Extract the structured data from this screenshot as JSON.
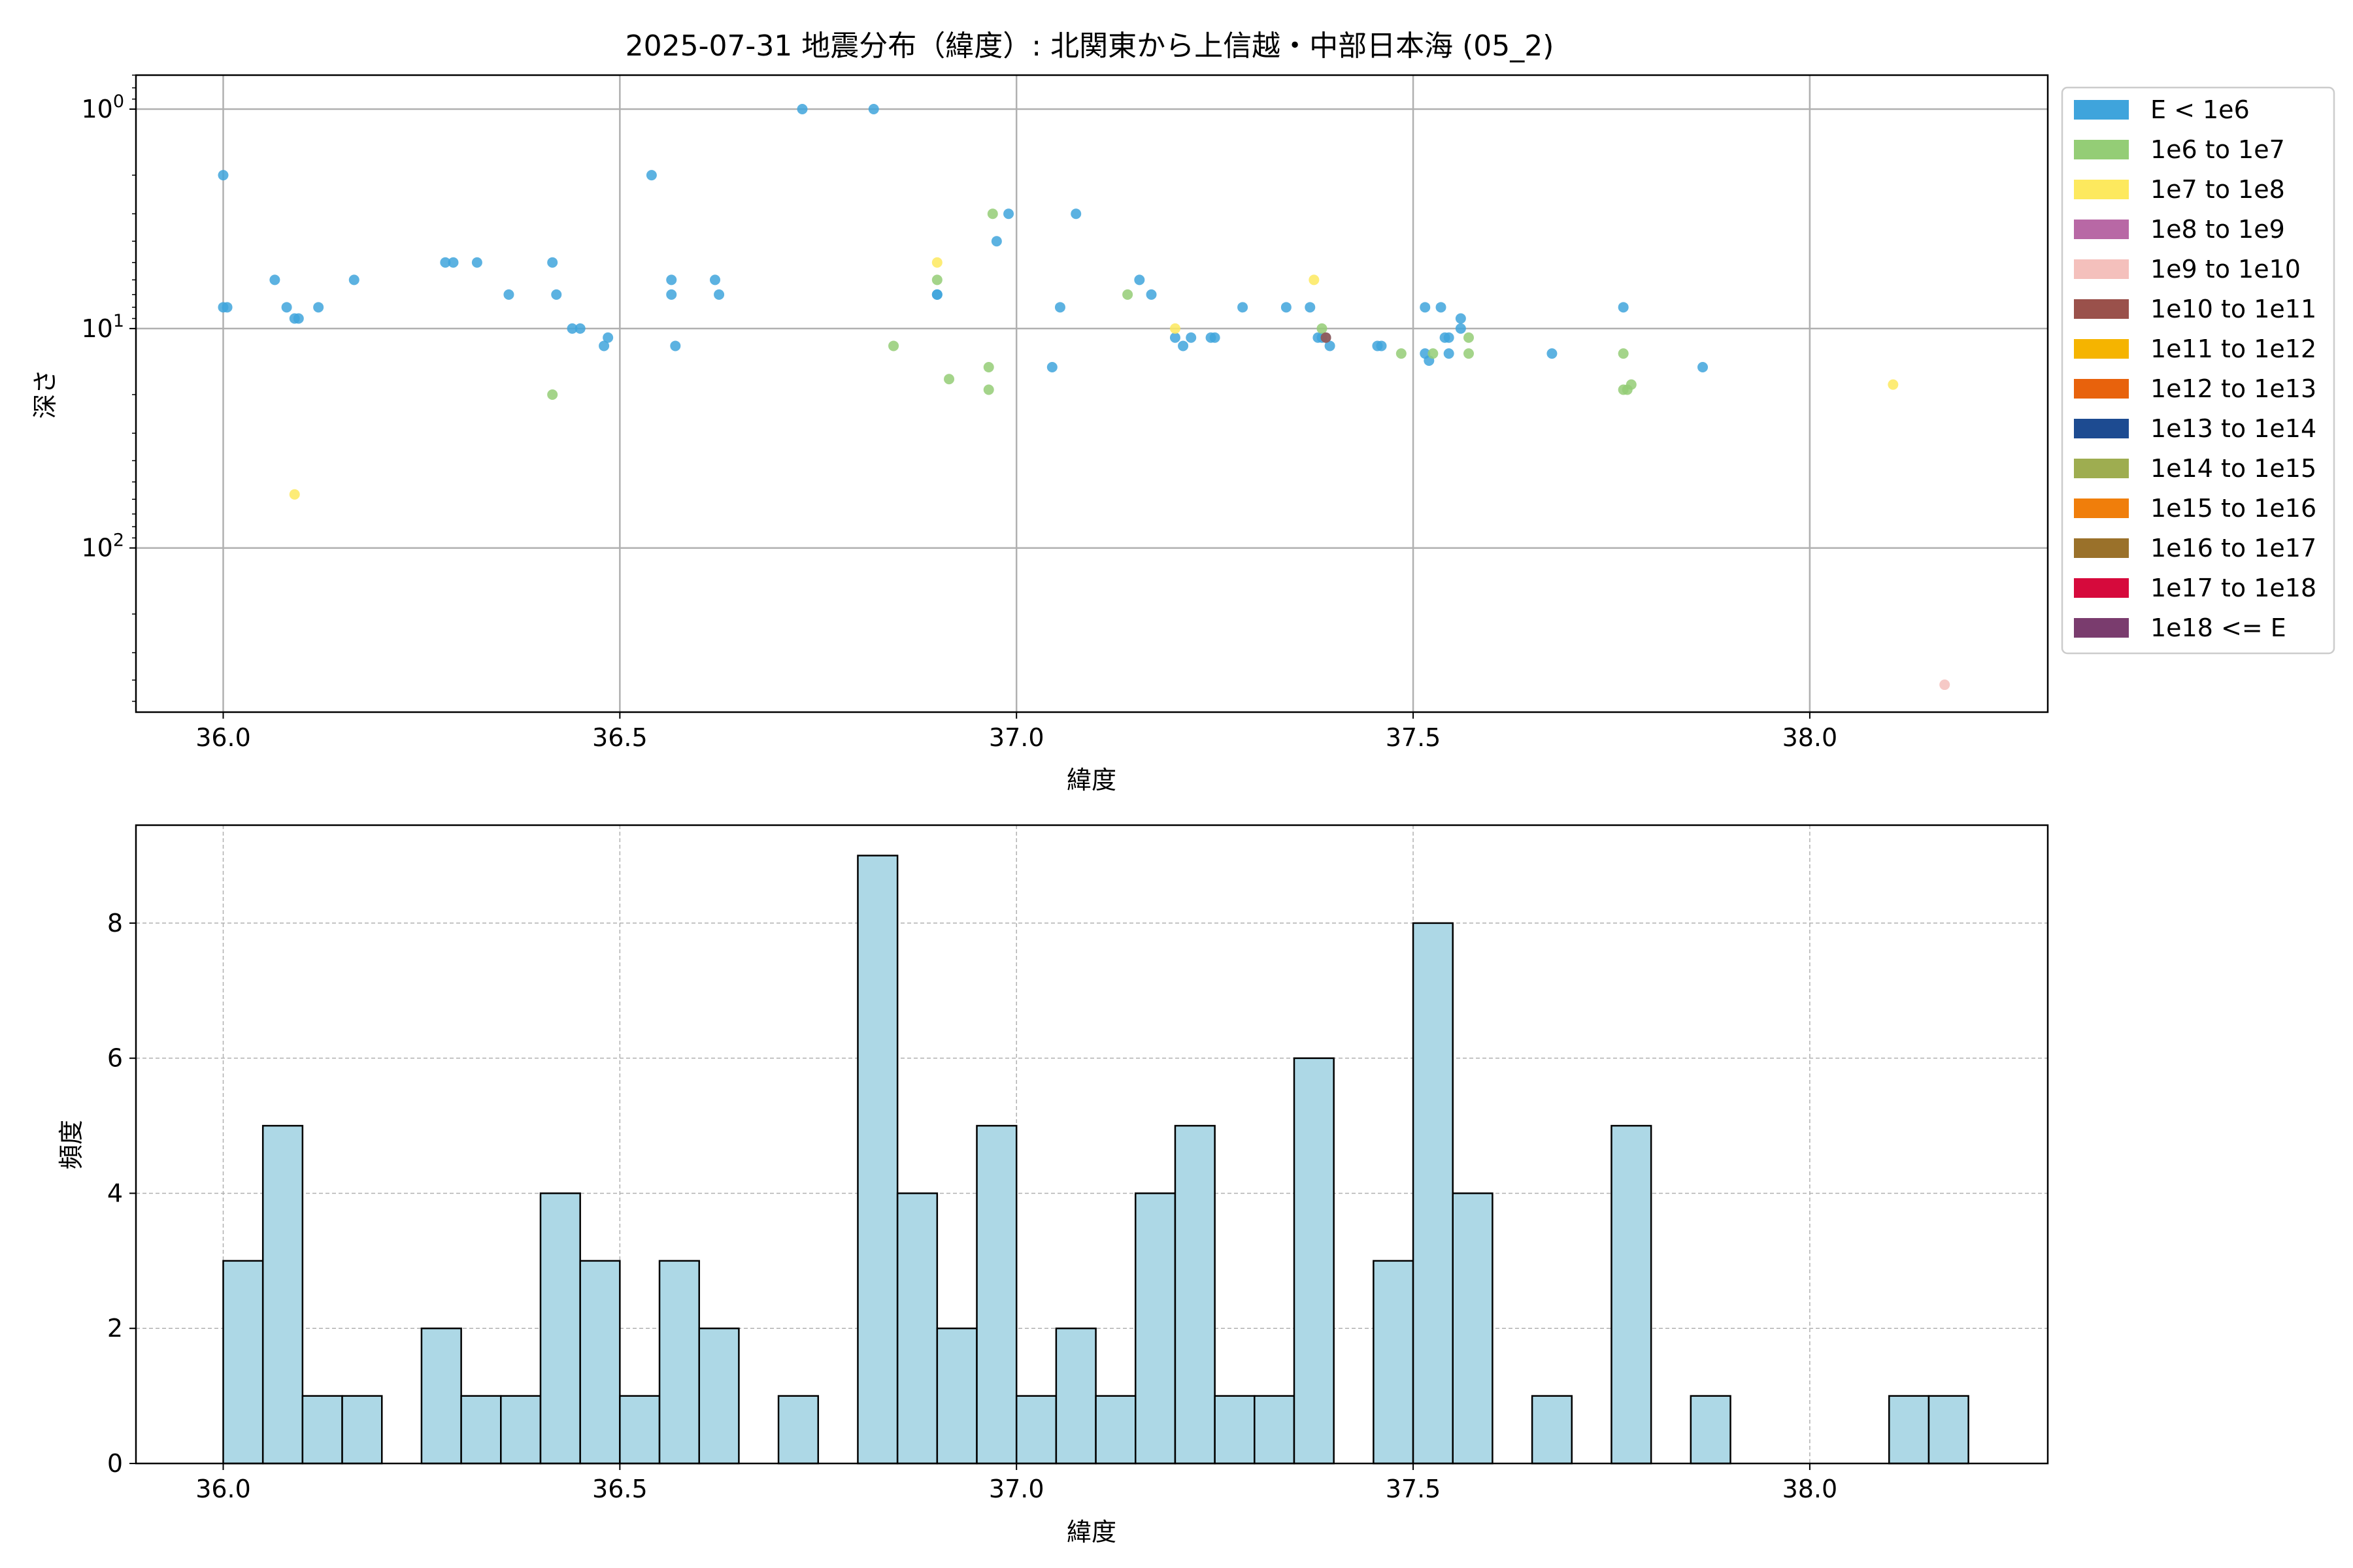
{
  "colors": {
    "grid": "#b0b0b0",
    "axis": "#000000",
    "hist_fill": "#add8e6",
    "hist_edge": "#000000"
  },
  "legend": {
    "placement": "outside-right of top plot",
    "entries": [
      {
        "label": "E < 1e6",
        "color": "#3fa4dc"
      },
      {
        "label": "1e6 to 1e7",
        "color": "#94cd76"
      },
      {
        "label": "1e7 to 1e8",
        "color": "#fde95e"
      },
      {
        "label": "1e8 to 1e9",
        "color": "#b868a5"
      },
      {
        "label": "1e9 to 1e10",
        "color": "#f4c0bc"
      },
      {
        "label": "1e10 to 1e11",
        "color": "#9a514b"
      },
      {
        "label": "1e11 to 1e12",
        "color": "#f5b400"
      },
      {
        "label": "1e12 to 1e13",
        "color": "#e8620c"
      },
      {
        "label": "1e13 to 1e14",
        "color": "#1d4b91"
      },
      {
        "label": "1e14 to 1e15",
        "color": "#9ead50"
      },
      {
        "label": "1e15 to 1e16",
        "color": "#f07e0b"
      },
      {
        "label": "1e16 to 1e17",
        "color": "#9a712a"
      },
      {
        "label": "1e17 to 1e18",
        "color": "#d60a3c"
      },
      {
        "label": "1e18 <= E",
        "color": "#7a3c6e"
      }
    ]
  },
  "chart_data": [
    {
      "type": "scatter",
      "title": "2025-07-31 地震分布（緯度）: 北関東から上信越・中部日本海 (05_2)",
      "xlabel": "緯度",
      "ylabel": "深さ",
      "xlim": [
        35.89,
        38.3
      ],
      "ylim": [
        0.7,
        560
      ],
      "yscale": "log",
      "y_inverted": true,
      "grid": true,
      "xticks": [
        {
          "v": 36.0,
          "label": "36.0"
        },
        {
          "v": 36.5,
          "label": "36.5"
        },
        {
          "v": 37.0,
          "label": "37.0"
        },
        {
          "v": 37.5,
          "label": "37.5"
        },
        {
          "v": 38.0,
          "label": "38.0"
        }
      ],
      "yticks": [
        {
          "v": 1,
          "base": "10",
          "exp": "0"
        },
        {
          "v": 10,
          "base": "10",
          "exp": "1"
        },
        {
          "v": 100,
          "base": "10",
          "exp": "2"
        }
      ],
      "series": [
        {
          "name": "E < 1e6",
          "color": "#3fa4dc",
          "points": [
            [
              36.0,
              2
            ],
            [
              36.0,
              8
            ],
            [
              36.005,
              8
            ],
            [
              36.065,
              6
            ],
            [
              36.08,
              8
            ],
            [
              36.09,
              9
            ],
            [
              36.095,
              9
            ],
            [
              36.12,
              8
            ],
            [
              36.165,
              6
            ],
            [
              36.28,
              5
            ],
            [
              36.29,
              5
            ],
            [
              36.32,
              5
            ],
            [
              36.36,
              7
            ],
            [
              36.415,
              5
            ],
            [
              36.42,
              7
            ],
            [
              36.44,
              10
            ],
            [
              36.45,
              10
            ],
            [
              36.48,
              12
            ],
            [
              36.485,
              11
            ],
            [
              36.54,
              2
            ],
            [
              36.565,
              6
            ],
            [
              36.565,
              7
            ],
            [
              36.57,
              12
            ],
            [
              36.62,
              6
            ],
            [
              36.625,
              7
            ],
            [
              36.73,
              1
            ],
            [
              36.82,
              1
            ],
            [
              36.9,
              7
            ],
            [
              36.9,
              7
            ],
            [
              36.975,
              4
            ],
            [
              36.99,
              3
            ],
            [
              37.045,
              15
            ],
            [
              37.055,
              8
            ],
            [
              37.075,
              3
            ],
            [
              37.155,
              6
            ],
            [
              37.17,
              7
            ],
            [
              37.2,
              11
            ],
            [
              37.21,
              12
            ],
            [
              37.22,
              11
            ],
            [
              37.245,
              11
            ],
            [
              37.25,
              11
            ],
            [
              37.285,
              8
            ],
            [
              37.34,
              8
            ],
            [
              37.37,
              8
            ],
            [
              37.38,
              11
            ],
            [
              37.385,
              11
            ],
            [
              37.39,
              11
            ],
            [
              37.395,
              12
            ],
            [
              37.455,
              12
            ],
            [
              37.46,
              12
            ],
            [
              37.515,
              13
            ],
            [
              37.52,
              14
            ],
            [
              37.515,
              8
            ],
            [
              37.535,
              8
            ],
            [
              37.54,
              11
            ],
            [
              37.545,
              11
            ],
            [
              37.545,
              13
            ],
            [
              37.56,
              9
            ],
            [
              37.56,
              10
            ],
            [
              37.675,
              13
            ],
            [
              37.765,
              8
            ],
            [
              37.865,
              15
            ]
          ]
        },
        {
          "name": "1e6 to 1e7",
          "color": "#94cd76",
          "points": [
            [
              36.415,
              20
            ],
            [
              36.845,
              12
            ],
            [
              36.9,
              6
            ],
            [
              36.915,
              17
            ],
            [
              36.965,
              15
            ],
            [
              36.965,
              19
            ],
            [
              36.97,
              3
            ],
            [
              37.14,
              7
            ],
            [
              37.385,
              10
            ],
            [
              37.485,
              13
            ],
            [
              37.525,
              13
            ],
            [
              37.57,
              11
            ],
            [
              37.57,
              13
            ],
            [
              37.765,
              13
            ],
            [
              37.765,
              19
            ],
            [
              37.77,
              19
            ],
            [
              37.775,
              18
            ]
          ]
        },
        {
          "name": "1e7 to 1e8",
          "color": "#fde95e",
          "points": [
            [
              36.09,
              57
            ],
            [
              36.9,
              5
            ],
            [
              37.2,
              10
            ],
            [
              37.375,
              6
            ],
            [
              38.105,
              18
            ]
          ]
        },
        {
          "name": "1e9 to 1e10",
          "color": "#f4c0bc",
          "points": [
            [
              38.17,
              420
            ]
          ]
        },
        {
          "name": "1e10 to 1e11",
          "color": "#9a514b",
          "points": [
            [
              37.39,
              11
            ]
          ]
        }
      ]
    },
    {
      "type": "bar",
      "subtype": "histogram",
      "xlabel": "緯度",
      "ylabel": "頻度",
      "xlim": [
        35.89,
        38.3
      ],
      "ylim": [
        0,
        9.45
      ],
      "grid": true,
      "xticks": [
        {
          "v": 36.0,
          "label": "36.0"
        },
        {
          "v": 36.5,
          "label": "36.5"
        },
        {
          "v": 37.0,
          "label": "37.0"
        },
        {
          "v": 37.5,
          "label": "37.5"
        },
        {
          "v": 38.0,
          "label": "38.0"
        }
      ],
      "yticks": [
        {
          "v": 0,
          "label": "0"
        },
        {
          "v": 2,
          "label": "2"
        },
        {
          "v": 4,
          "label": "4"
        },
        {
          "v": 6,
          "label": "6"
        },
        {
          "v": 8,
          "label": "8"
        }
      ],
      "bin_start": 36.0,
      "bin_width": 0.05,
      "counts": [
        3,
        5,
        1,
        1,
        0,
        2,
        1,
        1,
        4,
        3,
        1,
        3,
        2,
        0,
        1,
        0,
        9,
        4,
        2,
        5,
        1,
        2,
        1,
        4,
        5,
        1,
        1,
        6,
        0,
        3,
        8,
        4,
        0,
        1,
        0,
        5,
        0,
        1,
        0,
        0,
        0,
        0,
        1,
        1
      ]
    }
  ]
}
